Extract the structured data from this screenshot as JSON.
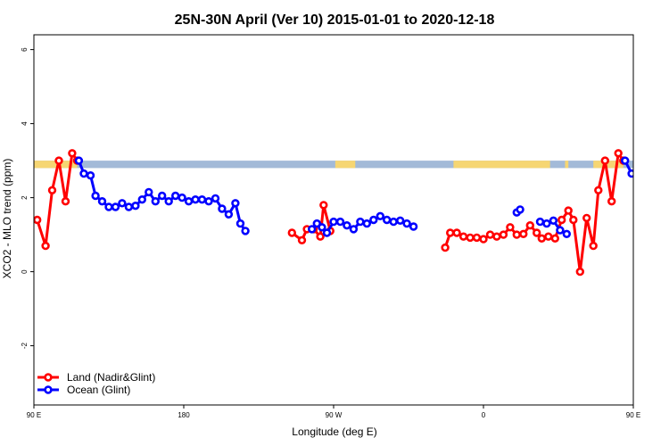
{
  "chart_data": {
    "type": "line",
    "title": "25N-30N April (Ver 10)   2015-01-01 to 2020-12-18",
    "xlabel": "Longitude (deg E)",
    "ylabel": "XCO2 - MLO trend (ppm)",
    "xlim": [
      90,
      450
    ],
    "ylim": [
      -3.6,
      6.4
    ],
    "x_ticks": [
      {
        "value": 90,
        "label": "90 E"
      },
      {
        "value": 180,
        "label": "180"
      },
      {
        "value": 270,
        "label": "90 W"
      },
      {
        "value": 360,
        "label": "0"
      },
      {
        "value": 450,
        "label": "90 E"
      },
      {
        "value": 540,
        "label": "180"
      }
    ],
    "y_ticks": [
      {
        "value": -2,
        "label": "-2"
      },
      {
        "value": 0,
        "label": "0"
      },
      {
        "value": 2,
        "label": "2"
      },
      {
        "value": 4,
        "label": "4"
      },
      {
        "value": 6,
        "label": "6"
      }
    ],
    "series": [
      {
        "name": "Land (Nadir&Glint)",
        "color": "#ff0000",
        "segments": [
          [
            [
              92,
              1.4
            ],
            [
              97,
              0.7
            ],
            [
              101,
              2.2
            ],
            [
              105,
              3.0
            ],
            [
              109,
              1.9
            ],
            [
              113,
              3.2
            ],
            [
              116,
              3.0
            ]
          ],
          [
            [
              245,
              1.05
            ],
            [
              251,
              0.85
            ],
            [
              254,
              1.15
            ],
            [
              258,
              1.15
            ],
            [
              262,
              0.95
            ],
            [
              264,
              1.8
            ],
            [
              268,
              1.1
            ]
          ],
          [
            [
              337,
              0.65
            ],
            [
              340,
              1.05
            ],
            [
              344,
              1.05
            ],
            [
              348,
              0.95
            ],
            [
              352,
              0.92
            ],
            [
              356,
              0.92
            ],
            [
              360,
              0.88
            ],
            [
              364,
              1.0
            ],
            [
              368,
              0.95
            ],
            [
              372,
              1.0
            ],
            [
              376,
              1.2
            ],
            [
              380,
              1.0
            ],
            [
              384,
              1.02
            ],
            [
              388,
              1.25
            ],
            [
              392,
              1.05
            ],
            [
              395,
              0.9
            ],
            [
              399,
              0.95
            ],
            [
              403,
              0.9
            ],
            [
              407,
              1.4
            ],
            [
              411,
              1.65
            ],
            [
              414,
              1.4
            ],
            [
              418,
              0.0
            ],
            [
              422,
              1.45
            ],
            [
              426,
              0.7
            ],
            [
              429,
              2.2
            ],
            [
              433,
              3.0
            ],
            [
              437,
              1.9
            ],
            [
              441,
              3.2
            ],
            [
              444,
              3.0
            ]
          ]
        ]
      },
      {
        "name": "Ocean (Glint)",
        "color": "#0000ff",
        "segments": [
          [
            [
              117,
              3.0
            ],
            [
              120,
              2.65
            ],
            [
              124,
              2.6
            ],
            [
              127,
              2.05
            ],
            [
              131,
              1.9
            ],
            [
              135,
              1.75
            ],
            [
              139,
              1.75
            ],
            [
              143,
              1.85
            ],
            [
              147,
              1.75
            ],
            [
              151,
              1.78
            ],
            [
              155,
              1.95
            ],
            [
              159,
              2.15
            ],
            [
              163,
              1.9
            ],
            [
              167,
              2.05
            ],
            [
              171,
              1.9
            ],
            [
              175,
              2.05
            ],
            [
              179,
              2.0
            ],
            [
              183,
              1.9
            ],
            [
              187,
              1.95
            ],
            [
              191,
              1.95
            ],
            [
              195,
              1.9
            ],
            [
              199,
              1.98
            ],
            [
              203,
              1.7
            ],
            [
              207,
              1.55
            ],
            [
              211,
              1.85
            ],
            [
              214,
              1.3
            ],
            [
              217,
              1.1
            ]
          ],
          [
            [
              257,
              1.15
            ],
            [
              260,
              1.3
            ],
            [
              263,
              1.2
            ],
            [
              266,
              1.05
            ],
            [
              270,
              1.35
            ],
            [
              274,
              1.35
            ],
            [
              278,
              1.25
            ],
            [
              282,
              1.15
            ],
            [
              286,
              1.35
            ],
            [
              290,
              1.3
            ],
            [
              294,
              1.4
            ],
            [
              298,
              1.5
            ],
            [
              302,
              1.4
            ],
            [
              306,
              1.35
            ],
            [
              310,
              1.38
            ],
            [
              314,
              1.3
            ],
            [
              318,
              1.22
            ]
          ],
          [
            [
              380,
              1.6
            ],
            [
              382,
              1.68
            ]
          ],
          [
            [
              394,
              1.35
            ],
            [
              398,
              1.3
            ],
            [
              402,
              1.38
            ],
            [
              406,
              1.12
            ],
            [
              410,
              1.02
            ]
          ],
          [
            [
              445,
              3.0
            ],
            [
              449,
              2.65
            ],
            [
              453,
              2.6
            ],
            [
              457,
              2.05
            ],
            [
              460,
              1.9
            ],
            [
              464,
              1.75
            ],
            [
              468,
              1.75
            ],
            [
              472,
              1.85
            ],
            [
              476,
              1.75
            ],
            [
              480,
              1.78
            ],
            [
              484,
              1.95
            ],
            [
              488,
              2.15
            ]
          ]
        ]
      }
    ],
    "land_sea_strip": {
      "ymin": 2.8,
      "ymax": 3.0,
      "ocean_color": "#a3bad8",
      "land_color": "#f6d673",
      "land_ranges": [
        [
          90,
          116
        ],
        [
          271,
          283
        ],
        [
          342,
          400
        ],
        [
          409,
          411
        ],
        [
          426,
          444
        ]
      ]
    },
    "legend": {
      "position": "bottom-left",
      "entries": [
        "Land (Nadir&Glint)",
        "Ocean (Glint)"
      ]
    },
    "grid": false
  }
}
